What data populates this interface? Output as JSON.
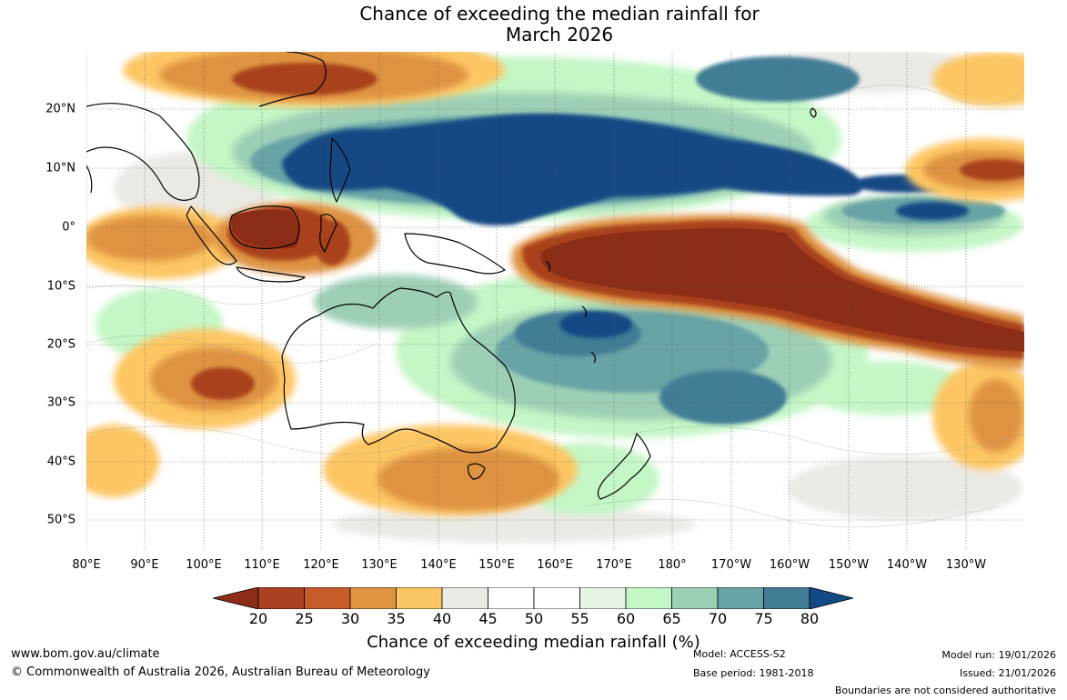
{
  "title": {
    "line1": "Chance of exceeding the median rainfall for",
    "line2": "March 2026"
  },
  "axes": {
    "latitudes": [
      "20°N",
      "10°N",
      "0°",
      "10°S",
      "20°S",
      "30°S",
      "40°S",
      "50°S"
    ],
    "longitudes": [
      "80°E",
      "90°E",
      "100°E",
      "110°E",
      "120°E",
      "130°E",
      "140°E",
      "150°E",
      "160°E",
      "170°E",
      "180°",
      "170°W",
      "160°W",
      "150°W",
      "140°W",
      "130°W"
    ]
  },
  "colorbar": {
    "ticks": [
      "20",
      "25",
      "30",
      "35",
      "40",
      "45",
      "50",
      "55",
      "60",
      "65",
      "70",
      "75",
      "80"
    ],
    "colors": [
      "#a9421f",
      "#c55c2a",
      "#de9342",
      "#fdc664",
      "#ebe9e4",
      "#ffffff",
      "#ffffff",
      "#e6f5e4",
      "#c4f6c6",
      "#9dcfb6",
      "#68a3a6",
      "#437d95"
    ],
    "under_color": "#8c2e17",
    "over_color": "#134a84",
    "label": "Chance of exceeding median rainfall (%)"
  },
  "map_legend_colors": {
    "very_low": "#8c2e17",
    "low": "#a9421f",
    "below": "#c55c2a",
    "slightly_below": "#de9342",
    "near_low": "#fdc664",
    "neutral": "#ebe9e4",
    "near_high": "#c4f6c6",
    "above": "#9dcfb6",
    "high": "#68a3a6",
    "very_high": "#437d95",
    "extreme_high": "#134a84"
  },
  "footer": {
    "url": "www.bom.gov.au/climate",
    "copyright": "© Commonwealth of Australia 2026, Australian Bureau of Meteorology",
    "model": "Model: ACCESS-S2",
    "base_period": "Base period: 1981-2018",
    "model_run": "Model run: 19/01/2026",
    "issued": "Issued: 21/01/2026",
    "disclaimer": "Boundaries are not considered authoritative"
  }
}
